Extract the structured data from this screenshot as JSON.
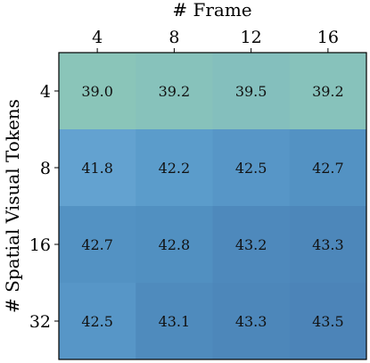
{
  "chart_data": {
    "type": "heatmap",
    "xlabel": "# Frame",
    "ylabel": "# Spatial Visual Tokens",
    "x_categories": [
      "4",
      "8",
      "12",
      "16"
    ],
    "y_categories": [
      "4",
      "8",
      "16",
      "32"
    ],
    "values": [
      [
        39.0,
        39.2,
        39.5,
        39.2
      ],
      [
        41.8,
        42.2,
        42.5,
        42.7
      ],
      [
        42.7,
        42.8,
        43.2,
        43.3
      ],
      [
        42.5,
        43.1,
        43.3,
        43.5
      ]
    ],
    "value_labels": [
      [
        "39.0",
        "39.2",
        "39.5",
        "39.2"
      ],
      [
        "41.8",
        "42.2",
        "42.5",
        "42.7"
      ],
      [
        "42.7",
        "42.8",
        "43.2",
        "43.3"
      ],
      [
        "42.5",
        "43.1",
        "43.3",
        "43.5"
      ]
    ],
    "x_axis_position": "top",
    "colors": {
      "39.0": "#8ac5b9",
      "39.2": "#87c2bb",
      "39.5": "#84bfbd",
      "41.8": "#63a2d0",
      "42.2": "#5b9ccb",
      "42.5": "#5796c7",
      "42.7": "#5392c3",
      "42.8": "#5190c1",
      "43.1": "#4f8bbd",
      "43.2": "#4e89bc",
      "43.3": "#4d87ba",
      "43.5": "#4c84b8"
    }
  }
}
